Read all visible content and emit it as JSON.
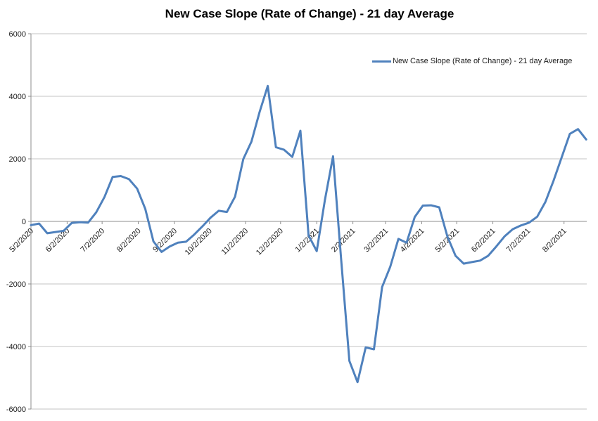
{
  "chart": {
    "title": "New Case Slope (Rate of Change) - 21 day Average",
    "legend_label": "New Case Slope (Rate of Change) - 21 day Average"
  },
  "colors": {
    "series": "#4F81BD",
    "gridline": "#C3C3C3",
    "axis": "#8C8C8C",
    "tick_text": "#1a1a1a",
    "background": "#FFFFFF"
  },
  "chart_data": {
    "type": "line",
    "title": "New Case Slope (Rate of Change) - 21 day Average",
    "series_name": "New Case Slope (Rate of Change) - 21 day Average",
    "ylim": [
      -6000,
      6000
    ],
    "y_ticks": [
      6000,
      4000,
      2000,
      0,
      -2000,
      -4000,
      -6000
    ],
    "grid": "horizontal",
    "legend_position": "top-right-inside",
    "x_start": "5/2/2020",
    "x_tick_labels": [
      "5/2/2020",
      "6/2/2020",
      "7/2/2020",
      "8/2/2020",
      "9/2/2020",
      "10/2/2020",
      "11/2/2020",
      "12/2/2020",
      "1/2/2021",
      "2/2/2021",
      "3/2/2021",
      "4/2/2021",
      "5/2/2021",
      "6/2/2021",
      "7/2/2021",
      "8/2/2021"
    ],
    "dates": [
      "5/2/2020",
      "5/9/2020",
      "5/16/2020",
      "5/23/2020",
      "5/30/2020",
      "6/6/2020",
      "6/13/2020",
      "6/20/2020",
      "6/27/2020",
      "7/4/2020",
      "7/11/2020",
      "7/18/2020",
      "7/25/2020",
      "8/1/2020",
      "8/8/2020",
      "8/15/2020",
      "8/22/2020",
      "8/29/2020",
      "9/5/2020",
      "9/12/2020",
      "9/19/2020",
      "9/26/2020",
      "10/3/2020",
      "10/10/2020",
      "10/17/2020",
      "10/24/2020",
      "10/31/2020",
      "11/7/2020",
      "11/14/2020",
      "11/21/2020",
      "11/28/2020",
      "12/5/2020",
      "12/12/2020",
      "12/19/2020",
      "12/26/2020",
      "1/2/2021",
      "1/9/2021",
      "1/16/2021",
      "1/23/2021",
      "1/30/2021",
      "2/6/2021",
      "2/13/2021",
      "2/20/2021",
      "2/27/2021",
      "3/6/2021",
      "3/13/2021",
      "3/20/2021",
      "3/27/2021",
      "4/3/2021",
      "4/10/2021",
      "4/17/2021",
      "4/24/2021",
      "5/1/2021",
      "5/8/2021",
      "5/15/2021",
      "5/22/2021",
      "5/29/2021",
      "6/5/2021",
      "6/12/2021",
      "6/19/2021",
      "6/26/2021",
      "7/3/2021",
      "7/10/2021",
      "7/17/2021",
      "7/24/2021",
      "7/31/2021",
      "8/7/2021",
      "8/14/2021",
      "8/21/2021"
    ],
    "values": [
      -120,
      -70,
      -380,
      -340,
      -300,
      -50,
      -25,
      -40,
      290,
      780,
      1420,
      1450,
      1350,
      1050,
      400,
      -640,
      -975,
      -800,
      -680,
      -650,
      -420,
      -160,
      120,
      340,
      300,
      790,
      1990,
      2550,
      3500,
      4330,
      2370,
      2290,
      2060,
      2900,
      -450,
      -950,
      680,
      2080,
      -1240,
      -4460,
      -5140,
      -4030,
      -4090,
      -2100,
      -1450,
      -560,
      -680,
      140,
      505,
      515,
      450,
      -480,
      -1100,
      -1350,
      -1300,
      -1255,
      -1100,
      -800,
      -480,
      -250,
      -130,
      -40,
      150,
      620,
      1300,
      2050,
      2800,
      2950,
      2620
    ]
  }
}
